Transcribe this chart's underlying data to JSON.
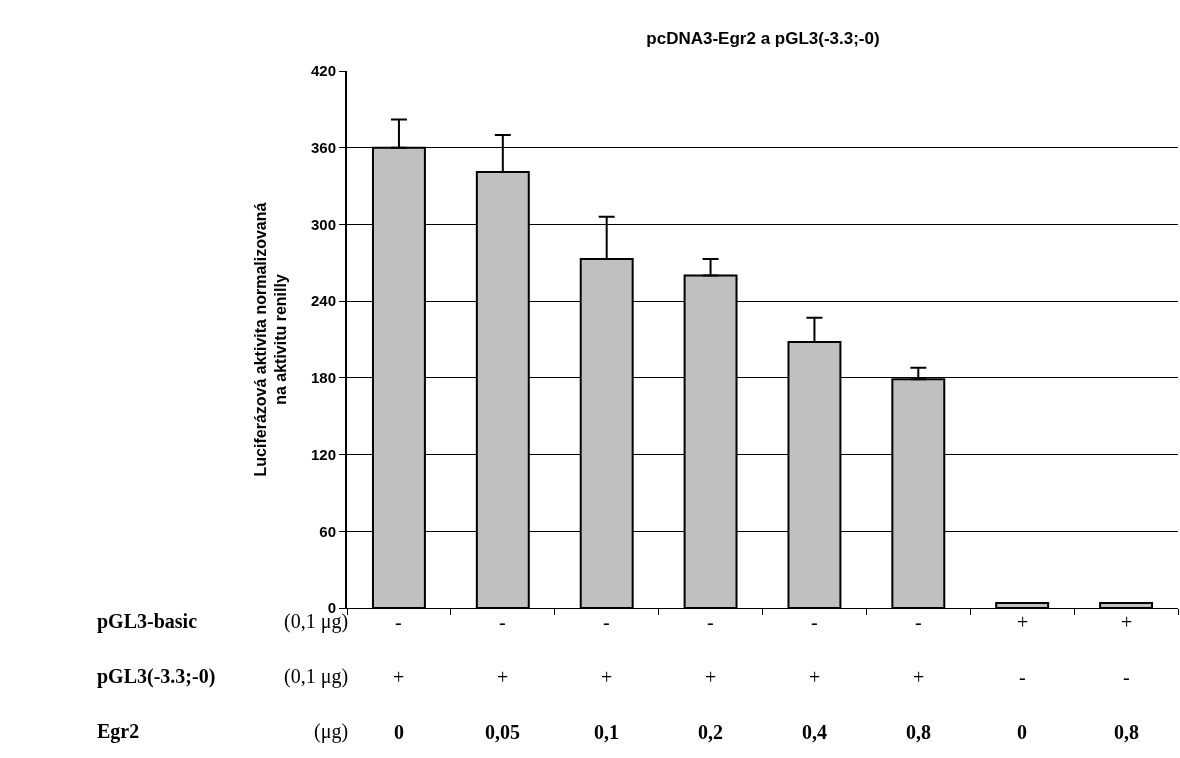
{
  "chart_data": {
    "type": "bar",
    "title": "pcDNA3-Egr2 a pGL3(-3.3;-0)",
    "ylabel": "Luciferázová aktivita normalizovaná\nna aktivitu renilly",
    "categories": [
      "-\n+\n0",
      "-\n+\n0,05",
      "-\n+\n0,1",
      "-\n+\n0,2",
      "-\n+\n0,4",
      "-\n+\n0,8",
      "+\n-\n0",
      "+\n-\n0,8"
    ],
    "values": [
      360,
      341,
      273,
      260,
      208,
      179,
      4,
      4
    ],
    "errors": [
      [
        360,
        382
      ],
      [
        341,
        370
      ],
      [
        273,
        306
      ],
      [
        260,
        273
      ],
      [
        208,
        227
      ],
      [
        179,
        188
      ],
      null,
      null
    ],
    "color": "#c0c0c0",
    "ylim": [
      0,
      420
    ],
    "yticks": [
      0,
      60,
      120,
      180,
      240,
      300,
      360,
      420
    ],
    "grid": "y",
    "annotations": [
      "pGL3-basic",
      "(0,1 μg)",
      "pGL3(-3.3;-0)",
      "(0,1 μg)",
      "Egr2",
      "(μg)"
    ]
  }
}
